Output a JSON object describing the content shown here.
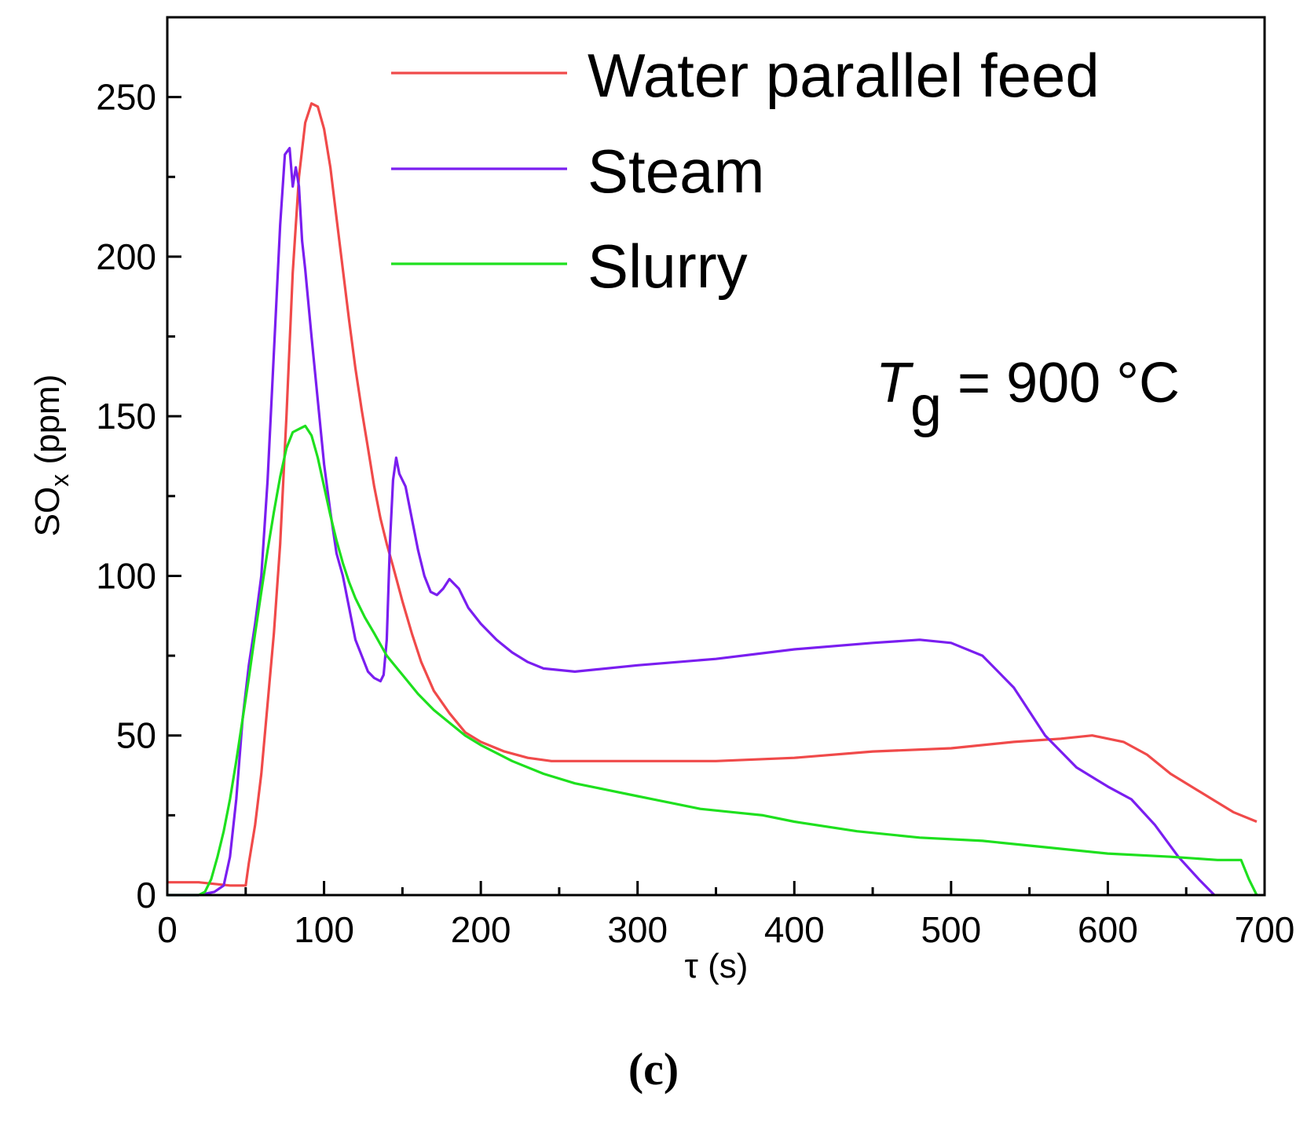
{
  "chart_data": {
    "type": "line",
    "xlabel": "τ (s)",
    "ylabel_main": "SO",
    "ylabel_sub": "x",
    "ylabel_unit": " (ppm)",
    "xlim": [
      0,
      700
    ],
    "ylim": [
      0,
      275
    ],
    "xticks": [
      0,
      100,
      200,
      300,
      400,
      500,
      600,
      700
    ],
    "xtick_labels": [
      "0",
      "100",
      "200",
      "300",
      "400",
      "500",
      "600",
      "700"
    ],
    "yticks": [
      0,
      50,
      100,
      150,
      200,
      250
    ],
    "ytick_labels": [
      "0",
      "50",
      "100",
      "150",
      "200",
      "250"
    ],
    "grid": false,
    "legend_position": "top-right",
    "annotation": {
      "symbol": "T",
      "subscript": "g",
      "text": " = 900 °C"
    },
    "panel_label": "(c)",
    "series": [
      {
        "name": "Water parallel feed",
        "color": "#f04a4a",
        "x": [
          0,
          20,
          40,
          50,
          52,
          56,
          60,
          64,
          68,
          72,
          76,
          80,
          84,
          88,
          92,
          96,
          100,
          104,
          108,
          112,
          116,
          120,
          124,
          128,
          132,
          136,
          140,
          144,
          150,
          156,
          162,
          170,
          180,
          190,
          200,
          215,
          230,
          245,
          260,
          300,
          350,
          400,
          450,
          500,
          540,
          570,
          590,
          610,
          625,
          640,
          660,
          680,
          695
        ],
        "y": [
          4,
          4,
          3,
          3,
          10,
          22,
          38,
          60,
          82,
          110,
          150,
          195,
          225,
          242,
          248,
          247,
          240,
          228,
          212,
          196,
          180,
          165,
          152,
          140,
          128,
          118,
          110,
          103,
          92,
          82,
          73,
          64,
          57,
          51,
          48,
          45,
          43,
          42,
          42,
          42,
          42,
          43,
          45,
          46,
          48,
          49,
          50,
          48,
          44,
          38,
          32,
          26,
          23
        ]
      },
      {
        "name": "Steam",
        "color": "#7a1ef0",
        "x": [
          0,
          20,
          30,
          36,
          40,
          44,
          48,
          52,
          56,
          60,
          64,
          68,
          72,
          75,
          78,
          80,
          82,
          84,
          86,
          88,
          92,
          96,
          100,
          104,
          108,
          112,
          116,
          120,
          124,
          128,
          132,
          136,
          138,
          140,
          142,
          144,
          146,
          148,
          152,
          156,
          160,
          164,
          168,
          172,
          176,
          180,
          186,
          192,
          200,
          210,
          220,
          230,
          240,
          260,
          300,
          350,
          400,
          450,
          480,
          500,
          520,
          540,
          560,
          580,
          600,
          615,
          630,
          645,
          658,
          668
        ],
        "y": [
          0,
          0,
          1,
          3,
          12,
          30,
          55,
          72,
          85,
          100,
          130,
          170,
          210,
          232,
          234,
          222,
          228,
          222,
          205,
          196,
          175,
          155,
          135,
          120,
          107,
          100,
          90,
          80,
          75,
          70,
          68,
          67,
          69,
          80,
          110,
          130,
          137,
          132,
          128,
          118,
          108,
          100,
          95,
          94,
          96,
          99,
          96,
          90,
          85,
          80,
          76,
          73,
          71,
          70,
          72,
          74,
          77,
          79,
          80,
          79,
          75,
          65,
          50,
          40,
          34,
          30,
          22,
          12,
          5,
          0
        ]
      },
      {
        "name": "Slurry",
        "color": "#1ee01e",
        "x": [
          0,
          20,
          24,
          28,
          32,
          36,
          40,
          44,
          48,
          52,
          56,
          60,
          64,
          68,
          72,
          76,
          80,
          84,
          88,
          92,
          96,
          100,
          104,
          108,
          112,
          116,
          120,
          126,
          132,
          140,
          150,
          160,
          170,
          180,
          190,
          200,
          220,
          240,
          260,
          280,
          300,
          320,
          340,
          360,
          380,
          400,
          440,
          480,
          520,
          560,
          600,
          640,
          670,
          685,
          690,
          695
        ],
        "y": [
          0,
          0,
          1,
          5,
          12,
          20,
          30,
          42,
          55,
          68,
          82,
          95,
          108,
          120,
          131,
          140,
          145,
          146,
          147,
          144,
          137,
          128,
          119,
          111,
          104,
          98,
          93,
          87,
          82,
          75,
          69,
          63,
          58,
          54,
          50,
          47,
          42,
          38,
          35,
          33,
          31,
          29,
          27,
          26,
          25,
          23,
          20,
          18,
          17,
          15,
          13,
          12,
          11,
          11,
          5,
          0
        ]
      }
    ]
  }
}
